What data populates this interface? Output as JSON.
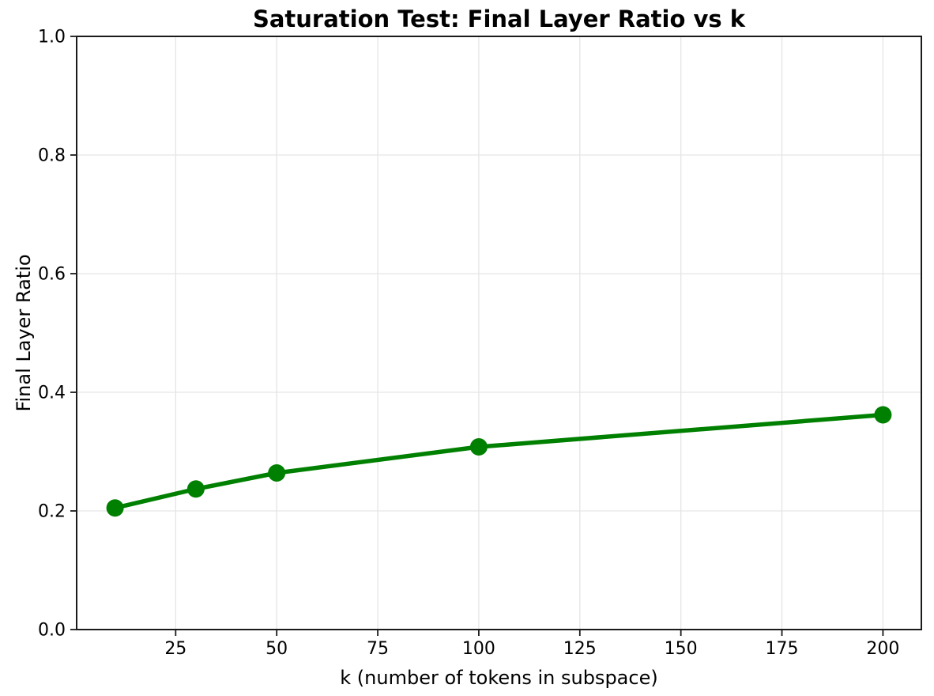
{
  "chart_data": {
    "type": "line",
    "title": "Saturation Test: Final Layer Ratio vs k",
    "xlabel": "k (number of tokens in subspace)",
    "ylabel": "Final Layer Ratio",
    "x": [
      10,
      30,
      50,
      100,
      200
    ],
    "y": [
      0.205,
      0.237,
      0.264,
      0.308,
      0.362
    ],
    "series_name": "Final Layer Ratio",
    "xlim": [
      0.5,
      209.5
    ],
    "ylim": [
      0.0,
      1.0
    ],
    "xticks": [
      {
        "value": 25,
        "label": "25"
      },
      {
        "value": 50,
        "label": "50"
      },
      {
        "value": 75,
        "label": "75"
      },
      {
        "value": 100,
        "label": "100"
      },
      {
        "value": 125,
        "label": "125"
      },
      {
        "value": 150,
        "label": "150"
      },
      {
        "value": 175,
        "label": "175"
      },
      {
        "value": 200,
        "label": "200"
      }
    ],
    "yticks": [
      {
        "value": 0.0,
        "label": "0.0"
      },
      {
        "value": 0.2,
        "label": "0.2"
      },
      {
        "value": 0.4,
        "label": "0.4"
      },
      {
        "value": 0.6,
        "label": "0.6"
      },
      {
        "value": 0.8,
        "label": "0.8"
      },
      {
        "value": 1.0,
        "label": "1.0"
      }
    ],
    "grid": true,
    "legend": "none",
    "colors": {
      "line": "#008000",
      "marker": "#008000",
      "grid": "#e5e5e5",
      "spine": "#1a1a1a",
      "background": "#ffffff"
    }
  }
}
